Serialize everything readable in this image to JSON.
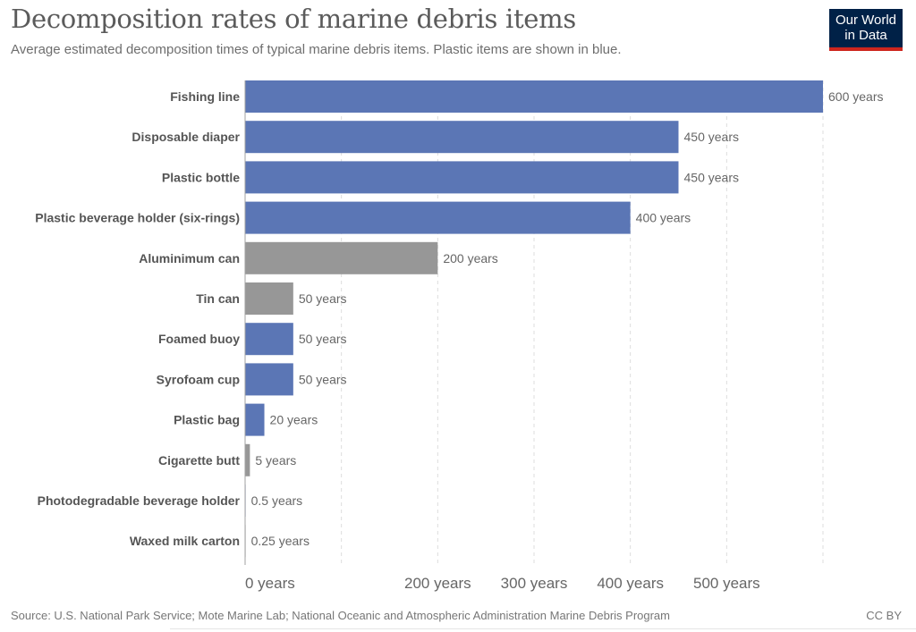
{
  "header": {
    "title": "Decomposition rates of marine debris items",
    "subtitle": "Average estimated decomposition times of typical marine debris items. Plastic items are shown in blue."
  },
  "logo": {
    "line1": "Our World",
    "line2": "in Data"
  },
  "footer": {
    "source": "Source: U.S. National Park Service; Mote Marine Lab; National Oceanic and Atmospheric Administration Marine Debris Program",
    "license": "CC BY"
  },
  "colors": {
    "plastic": "#5b76b5",
    "non_plastic": "#979797",
    "logo_bg": "#002147",
    "logo_accent": "#ce261e"
  },
  "chart_data": {
    "type": "bar",
    "orientation": "horizontal",
    "title": "Decomposition rates of marine debris items",
    "subtitle": "Average estimated decomposition times of typical marine debris items. Plastic items are shown in blue.",
    "xlabel": "",
    "ylabel": "",
    "unit": "years",
    "xlim": [
      0,
      600
    ],
    "grid": "vertical dashed",
    "gridlines": [
      100,
      200,
      300,
      400,
      500,
      600
    ],
    "ticks": [
      {
        "value": 0,
        "label": "0 years"
      },
      {
        "value": 200,
        "label": "200 years"
      },
      {
        "value": 300,
        "label": "300 years"
      },
      {
        "value": 400,
        "label": "400 years"
      },
      {
        "value": 500,
        "label": "500 years"
      }
    ],
    "categories": [
      "Fishing line",
      "Disposable diaper",
      "Plastic bottle",
      "Plastic beverage holder (six-rings)",
      "Aluminimum can",
      "Tin can",
      "Foamed buoy",
      "Syrofoam cup",
      "Plastic bag",
      "Cigarette butt",
      "Photodegradable beverage holder",
      "Waxed milk carton"
    ],
    "values": [
      600,
      450,
      450,
      400,
      200,
      50,
      50,
      50,
      20,
      5,
      0.5,
      0.25
    ],
    "value_labels": [
      "600 years",
      "450 years",
      "450 years",
      "400 years",
      "200 years",
      "50 years",
      "50 years",
      "50 years",
      "20 years",
      "5 years",
      "0.5 years",
      "0.25 years"
    ],
    "is_plastic": [
      true,
      true,
      true,
      true,
      false,
      false,
      true,
      true,
      true,
      false,
      true,
      false
    ]
  }
}
